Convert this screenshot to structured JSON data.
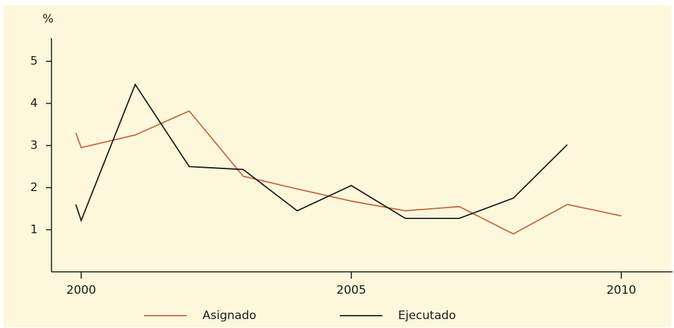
{
  "chart_data": {
    "type": "line",
    "y_label": "%",
    "x": [
      1999.9,
      2000,
      2001,
      2002,
      2003,
      2004,
      2005,
      2006,
      2007,
      2008,
      2009,
      2010
    ],
    "series": [
      {
        "name": "Asignado",
        "color": "#c8643c",
        "values": [
          3.3,
          2.95,
          3.25,
          3.82,
          2.27,
          1.97,
          1.68,
          1.45,
          1.55,
          0.9,
          1.6,
          1.33
        ]
      },
      {
        "name": "Ejecutado",
        "color": "#1a1a1a",
        "values": [
          1.6,
          1.22,
          4.45,
          2.5,
          2.43,
          1.45,
          2.05,
          1.27,
          1.27,
          1.75,
          3.02,
          null
        ]
      }
    ],
    "xlim": [
      1999.45,
      2010.95
    ],
    "ylim": [
      0,
      5.55
    ],
    "xticks": [
      2000,
      2005,
      2010
    ],
    "yticks": [
      1,
      2,
      3,
      4,
      5
    ],
    "legend": "bottom"
  }
}
